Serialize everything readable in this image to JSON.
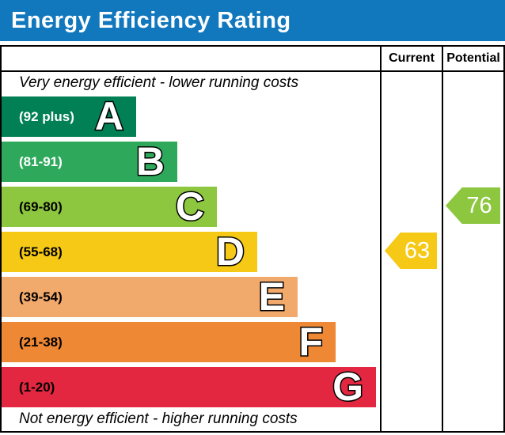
{
  "header": {
    "title": "Energy Efficiency Rating",
    "background_color": "#1278BE",
    "text_color": "#FFFFFF"
  },
  "table": {
    "columns": [
      "Current",
      "Potential"
    ],
    "top_note": "Very energy efficient - lower running costs",
    "bottom_note": "Not energy efficient - higher running costs"
  },
  "bands": [
    {
      "letter": "A",
      "range": "(92 plus)",
      "color": "#008054",
      "label_color": "#FFFFFF"
    },
    {
      "letter": "B",
      "range": "(81-91)",
      "color": "#2EA95C",
      "label_color": "#FFFFFF"
    },
    {
      "letter": "C",
      "range": "(69-80)",
      "color": "#8DC63F",
      "label_color": "#000000"
    },
    {
      "letter": "D",
      "range": "(55-68)",
      "color": "#F5C916",
      "label_color": "#000000"
    },
    {
      "letter": "E",
      "range": "(39-54)",
      "color": "#F2A96C",
      "label_color": "#000000"
    },
    {
      "letter": "F",
      "range": "(21-38)",
      "color": "#EE8835",
      "label_color": "#000000"
    },
    {
      "letter": "G",
      "range": "(1-20)",
      "color": "#E32740",
      "label_color": "#000000"
    }
  ],
  "ratings": {
    "current": {
      "value": "63",
      "band": "D",
      "color": "#F5C916",
      "text_color": "#FFFFFF"
    },
    "potential": {
      "value": "76",
      "band": "C",
      "color": "#8DC63F",
      "text_color": "#FFFFFF"
    }
  },
  "chart_data": {
    "type": "bar",
    "title": "Energy Efficiency Rating",
    "categories": [
      "A",
      "B",
      "C",
      "D",
      "E",
      "F",
      "G"
    ],
    "band_ranges": [
      "92 plus",
      "81-91",
      "69-80",
      "55-68",
      "39-54",
      "21-38",
      "1-20"
    ],
    "band_colors": [
      "#008054",
      "#2EA95C",
      "#8DC63F",
      "#F5C916",
      "#F2A96C",
      "#EE8835",
      "#E32740"
    ],
    "columns": [
      "Current",
      "Potential"
    ],
    "current_rating": 63,
    "current_band": "D",
    "potential_rating": 76,
    "potential_band": "C",
    "top_label": "Very energy efficient - lower running costs",
    "bottom_label": "Not energy efficient - higher running costs",
    "value_scale": [
      1,
      100
    ],
    "legend_position": "none",
    "grid": false
  }
}
